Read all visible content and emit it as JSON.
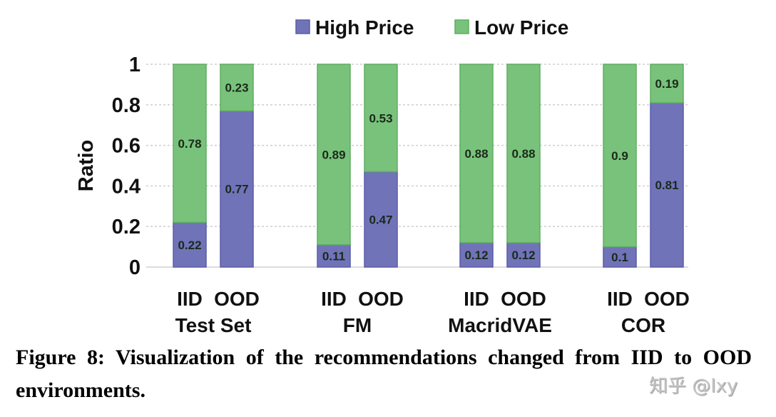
{
  "chart_data": {
    "type": "bar",
    "stacked": true,
    "ylabel": "Ratio",
    "ylim": [
      0,
      1
    ],
    "yticks": [
      "0",
      "0.2",
      "0.4",
      "0.6",
      "0.8",
      "1"
    ],
    "grid": true,
    "legend_position": "top",
    "groups": [
      {
        "name": "Test Set",
        "bars": [
          "IID",
          "OOD"
        ]
      },
      {
        "name": "FM",
        "bars": [
          "IID",
          "OOD"
        ]
      },
      {
        "name": "MacridVAE",
        "bars": [
          "IID",
          "OOD"
        ]
      },
      {
        "name": "COR",
        "bars": [
          "IID",
          "OOD"
        ]
      }
    ],
    "series": [
      {
        "name": "High Price",
        "color": "#7173b9",
        "values": [
          0.22,
          0.77,
          0.11,
          0.47,
          0.12,
          0.12,
          0.1,
          0.81
        ],
        "labels": [
          "0.22",
          "0.77",
          "0.11",
          "0.47",
          "0.12",
          "0.12",
          "0.1",
          "0.81"
        ]
      },
      {
        "name": "Low Price",
        "color": "#79c27b",
        "values": [
          0.78,
          0.23,
          0.89,
          0.53,
          0.88,
          0.88,
          0.9,
          0.19
        ],
        "labels": [
          "0.78",
          "0.23",
          "0.89",
          "0.53",
          "0.88",
          "0.88",
          "0.9",
          "0.19"
        ]
      }
    ]
  },
  "caption": "Figure 8: Visualization of the recommendations changed from IID to OOD environments.",
  "watermark": "知乎 @lxy"
}
